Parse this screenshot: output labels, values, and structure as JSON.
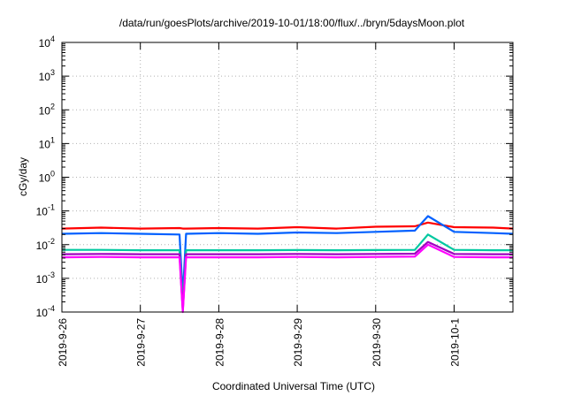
{
  "chart_data": {
    "type": "line",
    "title": "/data/run/goesPlots/archive/2019-10-01/18:00/flux/../bryn/5daysMoon.plot",
    "xlabel": "Coordinated Universal Time (UTC)",
    "ylabel": "cGy/day",
    "y_scale": "log",
    "ylim": [
      0.0001,
      10000
    ],
    "xlim": [
      "2019-09-26T00:00",
      "2019-10-01T18:00"
    ],
    "x_ticks": [
      "2019-9-26",
      "2019-9-27",
      "2019-9-28",
      "2019-9-29",
      "2019-9-30",
      "2019-10-1"
    ],
    "y_ticks": [
      {
        "value": 0.0001,
        "base": "10",
        "exp": "-4"
      },
      {
        "value": 0.001,
        "base": "10",
        "exp": "-3"
      },
      {
        "value": 0.01,
        "base": "10",
        "exp": "-2"
      },
      {
        "value": 0.1,
        "base": "10",
        "exp": "-1"
      },
      {
        "value": 1,
        "base": "10",
        "exp": "0"
      },
      {
        "value": 10,
        "base": "10",
        "exp": "1"
      },
      {
        "value": 100,
        "base": "10",
        "exp": "2"
      },
      {
        "value": 1000,
        "base": "10",
        "exp": "3"
      },
      {
        "value": 10000,
        "base": "10",
        "exp": "4"
      }
    ],
    "grid": true,
    "legend": "none",
    "series": [
      {
        "color": "#ff0000",
        "x": [
          "2019-09-26T00:00",
          "2019-09-26T12:00",
          "2019-09-27T00:00",
          "2019-09-27T12:00",
          "2019-09-27T13:00",
          "2019-09-27T14:00",
          "2019-09-28T00:00",
          "2019-09-28T12:00",
          "2019-09-29T00:00",
          "2019-09-29T12:00",
          "2019-09-30T00:00",
          "2019-09-30T12:00",
          "2019-09-30T16:00",
          "2019-10-01T00:00",
          "2019-10-01T12:00",
          "2019-10-01T18:00"
        ],
        "values": [
          0.03,
          0.032,
          0.03,
          0.031,
          0.03,
          0.03,
          0.031,
          0.03,
          0.033,
          0.03,
          0.034,
          0.035,
          0.045,
          0.033,
          0.032,
          0.03
        ]
      },
      {
        "color": "#0060ff",
        "x": [
          "2019-09-26T00:00",
          "2019-09-26T12:00",
          "2019-09-27T00:00",
          "2019-09-27T12:00",
          "2019-09-27T13:00",
          "2019-09-27T14:00",
          "2019-09-28T00:00",
          "2019-09-28T12:00",
          "2019-09-29T00:00",
          "2019-09-29T12:00",
          "2019-09-30T00:00",
          "2019-09-30T12:00",
          "2019-09-30T16:00",
          "2019-10-01T00:00",
          "2019-10-01T12:00",
          "2019-10-01T18:00"
        ],
        "values": [
          0.021,
          0.022,
          0.021,
          0.02,
          0.0003,
          0.021,
          0.022,
          0.021,
          0.023,
          0.022,
          0.024,
          0.026,
          0.07,
          0.024,
          0.022,
          0.021
        ]
      },
      {
        "color": "#00c8a0",
        "x": [
          "2019-09-26T00:00",
          "2019-09-26T12:00",
          "2019-09-27T00:00",
          "2019-09-27T12:00",
          "2019-09-27T13:00",
          "2019-09-27T14:00",
          "2019-09-28T00:00",
          "2019-09-28T12:00",
          "2019-09-29T00:00",
          "2019-09-29T12:00",
          "2019-09-30T00:00",
          "2019-09-30T12:00",
          "2019-09-30T16:00",
          "2019-10-01T00:00",
          "2019-10-01T12:00",
          "2019-10-01T18:00"
        ],
        "values": [
          0.007,
          0.007,
          0.0068,
          0.0068,
          0.0002,
          0.0068,
          0.0068,
          0.0068,
          0.0069,
          0.0068,
          0.0069,
          0.007,
          0.02,
          0.007,
          0.0068,
          0.0068
        ]
      },
      {
        "color": "#a000c0",
        "x": [
          "2019-09-26T00:00",
          "2019-09-26T12:00",
          "2019-09-27T00:00",
          "2019-09-27T12:00",
          "2019-09-27T13:00",
          "2019-09-27T14:00",
          "2019-09-28T00:00",
          "2019-09-28T12:00",
          "2019-09-29T00:00",
          "2019-09-29T12:00",
          "2019-09-30T00:00",
          "2019-09-30T12:00",
          "2019-09-30T16:00",
          "2019-10-01T00:00",
          "2019-10-01T12:00",
          "2019-10-01T18:00"
        ],
        "values": [
          0.0052,
          0.0053,
          0.0052,
          0.0052,
          0.00011,
          0.0052,
          0.0052,
          0.0052,
          0.0053,
          0.0052,
          0.0053,
          0.0054,
          0.012,
          0.0053,
          0.0052,
          0.0052
        ]
      },
      {
        "color": "#ff00ff",
        "x": [
          "2019-09-26T00:00",
          "2019-09-26T12:00",
          "2019-09-27T00:00",
          "2019-09-27T12:00",
          "2019-09-27T13:00",
          "2019-09-27T14:00",
          "2019-09-28T00:00",
          "2019-09-28T12:00",
          "2019-09-29T00:00",
          "2019-09-29T12:00",
          "2019-09-30T00:00",
          "2019-09-30T12:00",
          "2019-09-30T16:00",
          "2019-10-01T00:00",
          "2019-10-01T12:00",
          "2019-10-01T18:00"
        ],
        "values": [
          0.0042,
          0.0043,
          0.0042,
          0.0042,
          0.0001,
          0.0042,
          0.0042,
          0.0042,
          0.0043,
          0.0042,
          0.0043,
          0.0044,
          0.01,
          0.0043,
          0.0042,
          0.0042
        ]
      }
    ]
  }
}
